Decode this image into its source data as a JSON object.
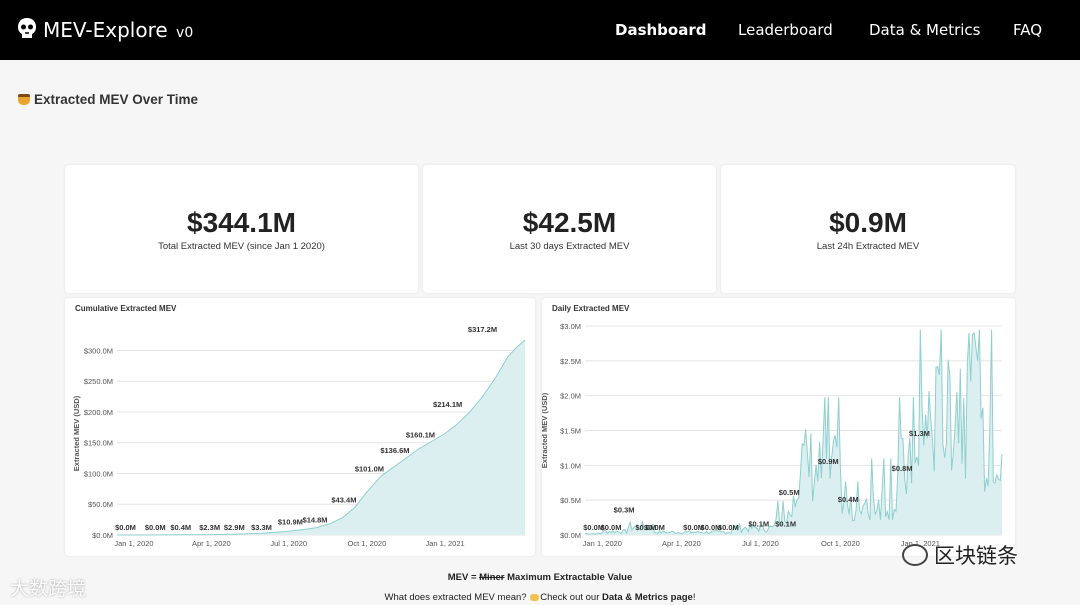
{
  "header": {
    "brand": "MEV-Explore",
    "version": "v0",
    "nav": [
      {
        "label": "Dashboard",
        "active": true
      },
      {
        "label": "Leaderboard",
        "active": false
      },
      {
        "label": "Data & Metrics",
        "active": false
      },
      {
        "label": "FAQ",
        "active": false
      }
    ]
  },
  "section": {
    "title": "Extracted MEV Over Time",
    "icon": "honey-pot-icon"
  },
  "stats": [
    {
      "value": "$344.1M",
      "label": "Total Extracted MEV (since Jan 1 2020)"
    },
    {
      "value": "$42.5M",
      "label": "Last 30 days Extracted MEV"
    },
    {
      "value": "$0.9M",
      "label": "Last 24h Extracted MEV"
    }
  ],
  "colors": {
    "accent": "#8fcfcf",
    "fill": "#dceff0"
  },
  "chart_data": [
    {
      "type": "area",
      "title": "Cumulative Extracted MEV",
      "ylabel": "Extracted MEV (USD)",
      "ylim": [
        0,
        330
      ],
      "yticks": [
        "$0.0M",
        "$50.0M",
        "$100.0M",
        "$150.0M",
        "$200.0M",
        "$250.0M",
        "$300.0M"
      ],
      "ytick_values": [
        0,
        50,
        100,
        150,
        200,
        250,
        300
      ],
      "xticks": [
        "Jan 1, 2020",
        "Apr 1, 2020",
        "Jul 1, 2020",
        "Oct 1, 2020",
        "Jan 1, 2021"
      ],
      "xtick_values": [
        0,
        91,
        182,
        274,
        366
      ],
      "xlim": [
        -20,
        460
      ],
      "x": [
        -20,
        0,
        30,
        60,
        91,
        120,
        150,
        182,
        200,
        215,
        230,
        245,
        260,
        274,
        290,
        305,
        320,
        335,
        350,
        366,
        380,
        395,
        410,
        425,
        440,
        450,
        460
      ],
      "values": [
        0,
        0,
        0.1,
        0.3,
        0.6,
        1.5,
        3,
        6,
        9,
        12,
        18,
        28,
        45,
        70,
        95,
        110,
        125,
        140,
        152,
        165,
        180,
        200,
        225,
        255,
        290,
        305,
        317
      ],
      "annotations": [
        {
          "x": -10,
          "y": 0,
          "label": "$0.0M"
        },
        {
          "x": 25,
          "y": 0,
          "label": "$0.0M"
        },
        {
          "x": 55,
          "y": 0,
          "label": "$0.4M"
        },
        {
          "x": 89,
          "y": 0,
          "label": "$2.3M"
        },
        {
          "x": 118,
          "y": 0,
          "label": "$2.9M"
        },
        {
          "x": 150,
          "y": 0,
          "label": "$3.3M"
        },
        {
          "x": 184,
          "y": 9,
          "label": "$10.9M"
        },
        {
          "x": 213,
          "y": 12,
          "label": "$14.8M"
        },
        {
          "x": 247,
          "y": 45,
          "label": "$43.4M"
        },
        {
          "x": 277,
          "y": 95,
          "label": "$101.0M"
        },
        {
          "x": 307,
          "y": 125,
          "label": "$136.6M"
        },
        {
          "x": 337,
          "y": 150,
          "label": "$160.1M"
        },
        {
          "x": 369,
          "y": 200,
          "label": "$214.1M"
        },
        {
          "x": 410,
          "y": 322,
          "label": "$317.2M"
        }
      ]
    },
    {
      "type": "area",
      "title": "Daily Extracted MEV",
      "ylabel": "Extracted MEV (USD)",
      "ylim": [
        0,
        3.0
      ],
      "yticks": [
        "$0.0M",
        "$0.5M",
        "$1.0M",
        "$1.5M",
        "$2.0M",
        "$2.5M",
        "$3.0M"
      ],
      "ytick_values": [
        0,
        0.5,
        1.0,
        1.5,
        2.0,
        2.5,
        3.0
      ],
      "xticks": [
        "Jan 1, 2020",
        "Apr 1, 2020",
        "Jul 1, 2020",
        "Oct 1, 2020",
        "Jan 1, 2021"
      ],
      "xtick_values": [
        0,
        91,
        182,
        274,
        366
      ],
      "xlim": [
        -20,
        460
      ],
      "annotations": [
        {
          "x": -10,
          "y": 0.0,
          "label": "$0.0M"
        },
        {
          "x": 10,
          "y": 0.0,
          "label": "$0.0M"
        },
        {
          "x": 25,
          "y": 0.25,
          "label": "$0.3M"
        },
        {
          "x": 50,
          "y": 0.0,
          "label": "$0.0M"
        },
        {
          "x": 60,
          "y": 0.0,
          "label": "$0.0M"
        },
        {
          "x": 105,
          "y": 0.0,
          "label": "$0.0M"
        },
        {
          "x": 125,
          "y": 0.0,
          "label": "$0.0M"
        },
        {
          "x": 145,
          "y": 0.0,
          "label": "$0.0M"
        },
        {
          "x": 180,
          "y": 0.05,
          "label": "$0.1M"
        },
        {
          "x": 211,
          "y": 0.05,
          "label": "$0.1M"
        },
        {
          "x": 215,
          "y": 0.5,
          "label": "$0.5M"
        },
        {
          "x": 260,
          "y": 0.95,
          "label": "$0.9M"
        },
        {
          "x": 283,
          "y": 0.4,
          "label": "$0.4M"
        },
        {
          "x": 345,
          "y": 0.85,
          "label": "$0.8M"
        },
        {
          "x": 365,
          "y": 1.35,
          "label": "$1.3M"
        }
      ]
    }
  ],
  "footer": {
    "mev_prefix": "MEV = ",
    "mev_strike": "Miner",
    "mev_suffix": " Maximum Extractable Value",
    "q_prefix": "What does extracted MEV mean? ",
    "q_middle": "Check out our ",
    "q_link": "Data & Metrics page",
    "q_suffix": "!"
  },
  "watermarks": {
    "left": "大数跨境",
    "right": "区块链条"
  }
}
